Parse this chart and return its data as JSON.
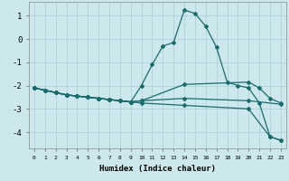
{
  "background_color": "#cce8ec",
  "grid_color": "#aacdd4",
  "line_color": "#1a6b6b",
  "xlabel": "Humidex (Indice chaleur)",
  "xlim": [
    -0.5,
    23.5
  ],
  "ylim": [
    -4.7,
    1.6
  ],
  "yticks": [
    -4,
    -3,
    -2,
    -1,
    0,
    1
  ],
  "xticks": [
    0,
    1,
    2,
    3,
    4,
    5,
    6,
    7,
    8,
    9,
    10,
    11,
    12,
    13,
    14,
    15,
    16,
    17,
    18,
    19,
    20,
    21,
    22,
    23
  ],
  "line1_x": [
    0,
    1,
    2,
    3,
    4,
    5,
    6,
    7,
    8,
    9,
    10,
    11,
    12,
    13,
    14,
    15,
    16,
    17,
    18,
    19,
    20,
    21,
    22,
    23
  ],
  "line1_y": [
    -2.1,
    -2.2,
    -2.3,
    -2.4,
    -2.45,
    -2.5,
    -2.55,
    -2.6,
    -2.65,
    -2.7,
    -2.0,
    -1.1,
    -0.3,
    -0.15,
    1.25,
    1.1,
    0.55,
    -0.35,
    -1.85,
    -2.0,
    -2.1,
    -2.75,
    -4.2,
    -4.35
  ],
  "line2_x": [
    0,
    1,
    2,
    3,
    4,
    5,
    6,
    7,
    8,
    9,
    10,
    14,
    20,
    21,
    22,
    23
  ],
  "line2_y": [
    -2.1,
    -2.2,
    -2.3,
    -2.4,
    -2.45,
    -2.5,
    -2.55,
    -2.6,
    -2.65,
    -2.7,
    -2.65,
    -1.95,
    -1.85,
    -2.1,
    -2.55,
    -2.75
  ],
  "line3_x": [
    0,
    1,
    2,
    3,
    4,
    5,
    6,
    7,
    8,
    9,
    10,
    14,
    20,
    23
  ],
  "line3_y": [
    -2.1,
    -2.2,
    -2.3,
    -2.4,
    -2.45,
    -2.5,
    -2.55,
    -2.6,
    -2.65,
    -2.7,
    -2.65,
    -2.55,
    -2.65,
    -2.8
  ],
  "line4_x": [
    0,
    1,
    2,
    3,
    4,
    5,
    6,
    7,
    8,
    9,
    10,
    14,
    20,
    22,
    23
  ],
  "line4_y": [
    -2.1,
    -2.2,
    -2.3,
    -2.4,
    -2.45,
    -2.5,
    -2.55,
    -2.6,
    -2.65,
    -2.7,
    -2.75,
    -2.85,
    -3.0,
    -4.2,
    -4.35
  ]
}
